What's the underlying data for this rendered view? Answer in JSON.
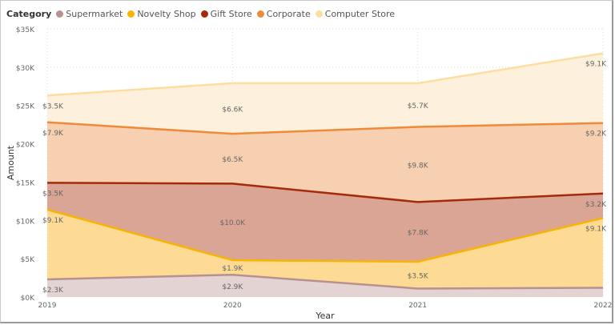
{
  "chart_data": {
    "type": "area",
    "stacked": true,
    "legend_title": "Category",
    "legend_position": "top-left",
    "xlabel": "Year",
    "ylabel": "Amount",
    "x": [
      "2019",
      "2020",
      "2021",
      "2022"
    ],
    "ylim": [
      0,
      35000
    ],
    "yticks": [
      "$0K",
      "$5K",
      "$10K",
      "$15K",
      "$20K",
      "$25K",
      "$30K",
      "$35K"
    ],
    "grid": true,
    "series": [
      {
        "name": "Supermarket",
        "color": "#B89090",
        "fill": "#E3D3D3",
        "values": [
          2300,
          2900,
          1100,
          1200
        ],
        "labels": [
          "$2.3K",
          "$2.9K",
          null,
          null
        ]
      },
      {
        "name": "Novelty Shop",
        "color": "#F8B400",
        "fill": "#FDDB94",
        "values": [
          9100,
          1900,
          3500,
          9100
        ],
        "labels": [
          "$9.1K",
          "$1.9K",
          "$3.5K",
          "$9.1K"
        ]
      },
      {
        "name": "Gift Store",
        "color": "#A52A0A",
        "fill": "#DBA596",
        "values": [
          3500,
          10000,
          7800,
          3200
        ],
        "labels": [
          "$3.5K",
          "$10.0K",
          "$7.8K",
          "$3.2K"
        ]
      },
      {
        "name": "Corporate",
        "color": "#EE8A3A",
        "fill": "#F6D0B0",
        "values": [
          7900,
          6500,
          9800,
          9200
        ],
        "labels": [
          "$7.9K",
          "$6.5K",
          "$9.8K",
          "$9.2K"
        ]
      },
      {
        "name": "Computer Store",
        "color": "#FDDDA0",
        "fill": "#FDF0DC",
        "values": [
          3500,
          6600,
          5700,
          9100
        ],
        "labels": [
          "$3.5K",
          "$6.6K",
          "$5.7K",
          "$9.1K"
        ]
      }
    ]
  }
}
